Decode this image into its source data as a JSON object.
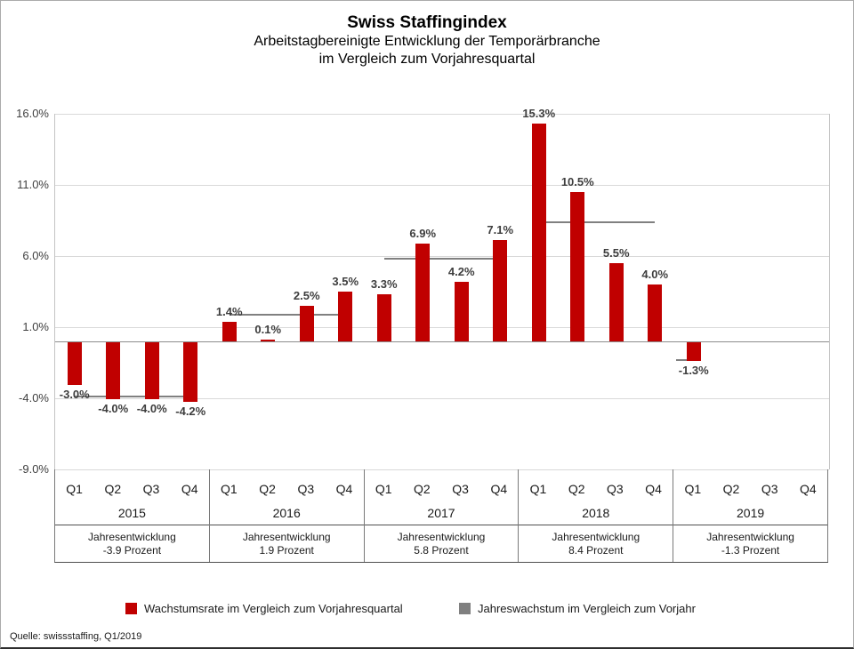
{
  "page": {
    "title": "Swiss Staffingindex",
    "subtitle_line1": "Arbeitstagbereinigte Entwicklung der Temporärbranche",
    "subtitle_line2": "im Vergleich zum Vorjahresquartal",
    "source": "Quelle: swissstaffing, Q1/2019"
  },
  "chart_data": {
    "type": "bar",
    "title": "Swiss Staffingindex",
    "subtitle": [
      "Arbeitstagbereinigte Entwicklung der Temporärbranche",
      "im Vergleich zum Vorjahresquartal"
    ],
    "ylim": [
      -9.0,
      16.0
    ],
    "grid": true,
    "bar_color": "#c00000",
    "annual_line_color": "#808080",
    "y_ticks": [
      {
        "value": 16.0,
        "label": "16.0%"
      },
      {
        "value": 11.0,
        "label": "11.0%"
      },
      {
        "value": 6.0,
        "label": "6.0%"
      },
      {
        "value": 1.0,
        "label": "1.0%"
      },
      {
        "value": -4.0,
        "label": "-4.0%"
      },
      {
        "value": -9.0,
        "label": "-9.0%"
      }
    ],
    "years": [
      {
        "year": "2015",
        "annual_value": -3.9,
        "annual_label_line1": "Jahresentwicklung",
        "annual_label_line2": "-3.9 Prozent",
        "quarters": [
          {
            "label": "Q1",
            "value": -3.0,
            "value_label": "-3.0%"
          },
          {
            "label": "Q2",
            "value": -4.0,
            "value_label": "-4.0%"
          },
          {
            "label": "Q3",
            "value": -4.0,
            "value_label": "-4.0%"
          },
          {
            "label": "Q4",
            "value": -4.2,
            "value_label": "-4.2%"
          }
        ]
      },
      {
        "year": "2016",
        "annual_value": 1.9,
        "annual_label_line1": "Jahresentwicklung",
        "annual_label_line2": "1.9 Prozent",
        "quarters": [
          {
            "label": "Q1",
            "value": 1.4,
            "value_label": "1.4%"
          },
          {
            "label": "Q2",
            "value": 0.1,
            "value_label": "0.1%"
          },
          {
            "label": "Q3",
            "value": 2.5,
            "value_label": "2.5%"
          },
          {
            "label": "Q4",
            "value": 3.5,
            "value_label": "3.5%"
          }
        ]
      },
      {
        "year": "2017",
        "annual_value": 5.8,
        "annual_label_line1": "Jahresentwicklung",
        "annual_label_line2": "5.8 Prozent",
        "quarters": [
          {
            "label": "Q1",
            "value": 3.3,
            "value_label": "3.3%"
          },
          {
            "label": "Q2",
            "value": 6.9,
            "value_label": "6.9%"
          },
          {
            "label": "Q3",
            "value": 4.2,
            "value_label": "4.2%"
          },
          {
            "label": "Q4",
            "value": 7.1,
            "value_label": "7.1%"
          }
        ]
      },
      {
        "year": "2018",
        "annual_value": 8.4,
        "annual_label_line1": "Jahresentwicklung",
        "annual_label_line2": "8.4 Prozent",
        "quarters": [
          {
            "label": "Q1",
            "value": 15.3,
            "value_label": "15.3%"
          },
          {
            "label": "Q2",
            "value": 10.5,
            "value_label": "10.5%"
          },
          {
            "label": "Q3",
            "value": 5.5,
            "value_label": "5.5%"
          },
          {
            "label": "Q4",
            "value": 4.0,
            "value_label": "4.0%"
          }
        ]
      },
      {
        "year": "2019",
        "annual_value": -1.3,
        "annual_label_line1": "Jahresentwicklung",
        "annual_label_line2": "-1.3 Prozent",
        "quarters": [
          {
            "label": "Q1",
            "value": -1.3,
            "value_label": "-1.3%"
          },
          {
            "label": "Q2",
            "value": null,
            "value_label": ""
          },
          {
            "label": "Q3",
            "value": null,
            "value_label": ""
          },
          {
            "label": "Q4",
            "value": null,
            "value_label": ""
          }
        ]
      }
    ],
    "legend": [
      {
        "label": "Wachstumsrate im Vergleich zum Vorjahresquartal",
        "color": "#c00000"
      },
      {
        "label": "Jahreswachstum im Vergleich zum Vorjahr",
        "color": "#808080"
      }
    ]
  }
}
